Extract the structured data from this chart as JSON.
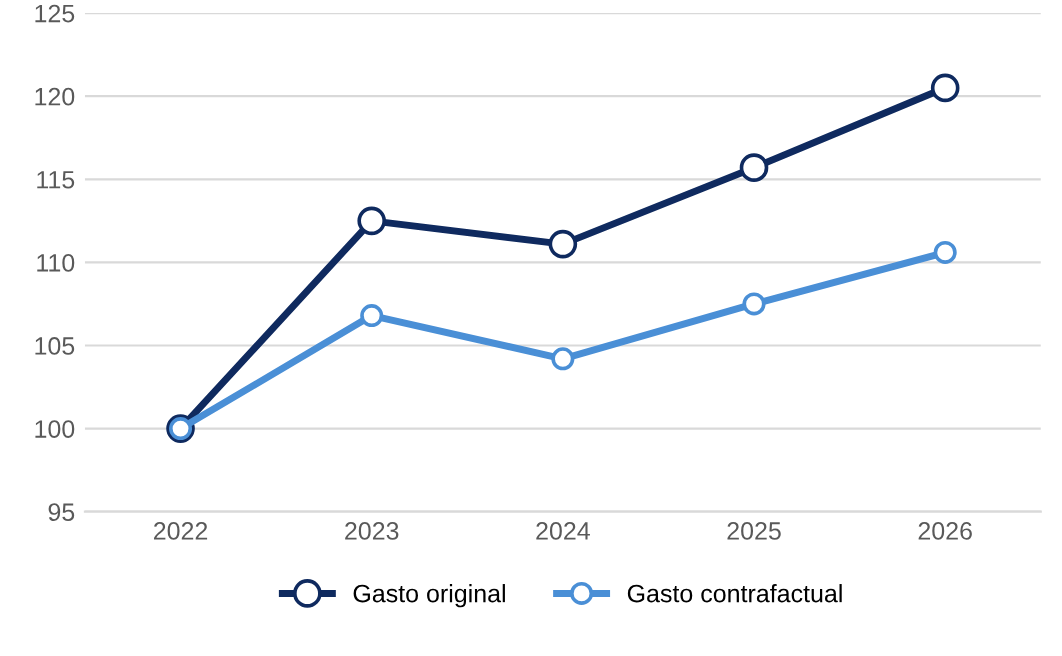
{
  "chart_data": {
    "type": "line",
    "categories": [
      "2022",
      "2023",
      "2024",
      "2025",
      "2026"
    ],
    "series": [
      {
        "name": "Gasto original",
        "color": "#0f2a5f",
        "values": [
          100,
          112.5,
          111.1,
          115.7,
          120.5
        ]
      },
      {
        "name": "Gasto contrafactual",
        "color": "#4a8fd6",
        "values": [
          100,
          106.8,
          104.2,
          107.5,
          110.6
        ]
      }
    ],
    "ylim": [
      95,
      125
    ],
    "yticks": [
      95,
      100,
      105,
      110,
      115,
      120,
      125
    ],
    "grid": "y",
    "legend": "bottom",
    "marker": "circle",
    "line_style": "solid"
  }
}
